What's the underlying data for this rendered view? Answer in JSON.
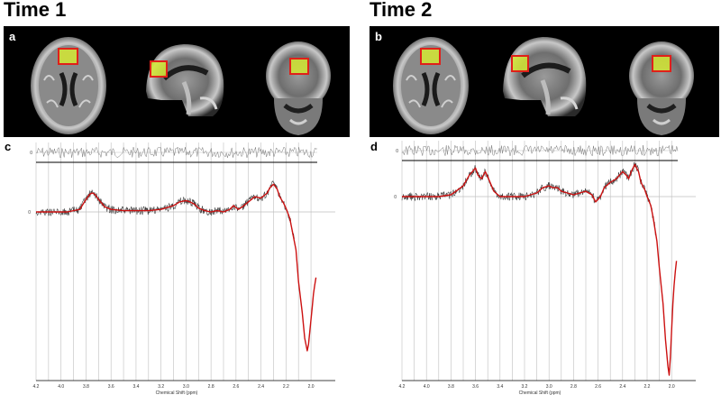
{
  "figure": {
    "left": {
      "title": "Time 1",
      "mri_label": "a",
      "spectrum_label": "c"
    },
    "right": {
      "title": "Time 2",
      "mri_label": "b",
      "spectrum_label": "d"
    }
  },
  "colors": {
    "fit_line": "#cc1111",
    "raw_line": "#333333",
    "voi_fill": "#d4e832",
    "voi_border": "#e0201a",
    "grid": "#bfbfbf"
  },
  "chart_data": [
    {
      "type": "line",
      "panel": "c",
      "xlabel": "Chemical Shift (ppm)",
      "ylabel": "",
      "xlim": [
        4.2,
        1.95
      ],
      "x_reversed": true,
      "tick_labels": [
        "4.2",
        "4.0",
        "3.8",
        "3.6",
        "3.4",
        "3.2",
        "3.0",
        "2.8",
        "2.6",
        "2.4",
        "2.2",
        "2.0"
      ],
      "zero_label": "0",
      "residual_zero_label": "0",
      "series": [
        {
          "x": [
            4.2,
            4.1,
            3.95,
            3.85,
            3.8,
            3.77,
            3.75,
            3.73,
            3.7,
            3.65,
            3.6,
            3.5,
            3.4,
            3.3,
            3.2,
            3.1,
            3.05,
            3.0,
            2.97,
            2.93,
            2.9,
            2.85,
            2.8,
            2.75,
            2.7,
            2.65,
            2.62,
            2.58,
            2.55,
            2.5,
            2.45,
            2.4,
            2.35,
            2.33,
            2.3,
            2.27,
            2.25,
            2.22,
            2.2,
            2.17,
            2.15,
            2.12,
            2.1,
            2.07,
            2.05,
            2.03,
            2.02,
            2.01,
            2.0,
            1.99,
            1.98,
            1.97,
            1.96
          ],
          "values": [
            0.0,
            0.0,
            0.0,
            0.02,
            0.1,
            0.14,
            0.15,
            0.14,
            0.1,
            0.04,
            0.02,
            0.01,
            0.01,
            0.01,
            0.02,
            0.05,
            0.08,
            0.09,
            0.08,
            0.06,
            0.03,
            0.01,
            0.0,
            0.01,
            0.0,
            0.02,
            0.05,
            0.02,
            0.04,
            0.08,
            0.12,
            0.11,
            0.15,
            0.19,
            0.22,
            0.18,
            0.12,
            0.07,
            0.03,
            -0.05,
            -0.15,
            -0.3,
            -0.55,
            -0.8,
            -1.0,
            -1.1,
            -1.05,
            -0.95,
            -0.85,
            -0.75,
            -0.65,
            -0.58,
            -0.52
          ]
        }
      ]
    },
    {
      "type": "line",
      "panel": "d",
      "xlabel": "Chemical Shift (ppm)",
      "ylabel": "",
      "xlim": [
        4.2,
        1.95
      ],
      "x_reversed": true,
      "tick_labels": [
        "4.2",
        "4.0",
        "3.8",
        "3.6",
        "3.4",
        "3.2",
        "3.0",
        "2.8",
        "2.6",
        "2.4",
        "2.2",
        "2.0"
      ],
      "zero_label": "0",
      "residual_zero_label": "0",
      "series": [
        {
          "x": [
            4.2,
            4.1,
            4.0,
            3.9,
            3.8,
            3.7,
            3.65,
            3.6,
            3.58,
            3.55,
            3.52,
            3.5,
            3.45,
            3.4,
            3.3,
            3.2,
            3.1,
            3.05,
            3.0,
            2.97,
            2.93,
            2.9,
            2.85,
            2.8,
            2.75,
            2.7,
            2.65,
            2.62,
            2.58,
            2.55,
            2.5,
            2.45,
            2.4,
            2.37,
            2.35,
            2.33,
            2.3,
            2.27,
            2.25,
            2.22,
            2.2,
            2.17,
            2.15,
            2.12,
            2.1,
            2.07,
            2.05,
            2.03,
            2.02,
            2.01,
            2.0,
            1.99,
            1.98,
            1.97,
            1.96
          ],
          "values": [
            0.0,
            0.0,
            0.0,
            0.0,
            0.01,
            0.06,
            0.12,
            0.16,
            0.12,
            0.1,
            0.14,
            0.11,
            0.03,
            0.0,
            0.0,
            0.0,
            0.02,
            0.05,
            0.06,
            0.05,
            0.05,
            0.03,
            0.02,
            0.01,
            0.02,
            0.03,
            0.01,
            -0.03,
            0.0,
            0.05,
            0.08,
            0.1,
            0.14,
            0.12,
            0.1,
            0.14,
            0.18,
            0.14,
            0.08,
            0.04,
            0.0,
            -0.05,
            -0.12,
            -0.25,
            -0.4,
            -0.6,
            -0.8,
            -0.95,
            -1.0,
            -0.9,
            -0.75,
            -0.6,
            -0.5,
            -0.42,
            -0.36
          ]
        }
      ]
    }
  ]
}
